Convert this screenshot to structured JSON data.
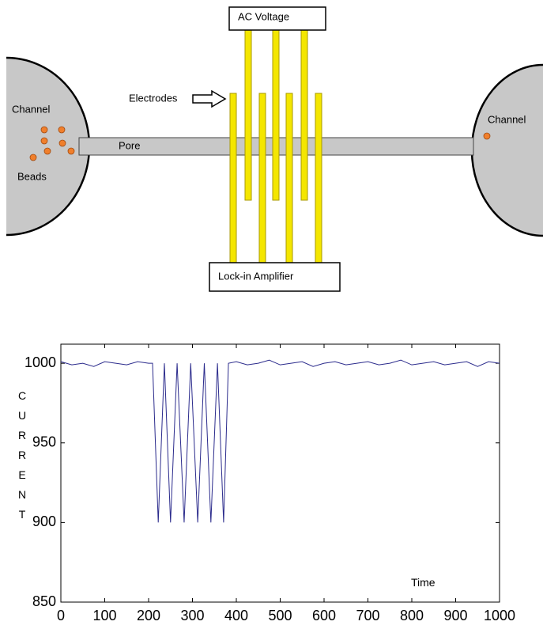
{
  "diagram": {
    "labels": {
      "ac_voltage": "AC Voltage",
      "electrodes": "Electrodes",
      "channel_left": "Channel",
      "beads": "Beads",
      "pore": "Pore",
      "lock_in": "Lock-in Amplifier",
      "channel_right": "Channel"
    }
  },
  "chart_data": {
    "type": "line",
    "ylabel": "CURRENT",
    "xlabel": "Time",
    "x": [
      0,
      25,
      50,
      75,
      100,
      125,
      150,
      175,
      200,
      209,
      222,
      236,
      250,
      265,
      281,
      296,
      312,
      327,
      342,
      357,
      371,
      382,
      400,
      425,
      450,
      475,
      500,
      525,
      550,
      575,
      600,
      625,
      650,
      675,
      700,
      725,
      750,
      775,
      800,
      825,
      850,
      875,
      900,
      925,
      950,
      975,
      1000
    ],
    "values": [
      1001,
      999,
      1000,
      998,
      1001,
      1000,
      999,
      1001,
      1000,
      1000,
      900,
      1000,
      900,
      1000,
      900,
      1000,
      900,
      1000,
      900,
      1000,
      900,
      1000,
      1001,
      999,
      1000,
      1002,
      999,
      1000,
      1001,
      998,
      1000,
      1001,
      999,
      1000,
      1001,
      999,
      1000,
      1002,
      999,
      1000,
      1001,
      999,
      1000,
      1001,
      998,
      1001,
      1000
    ],
    "color": "#2b2b8c",
    "xlim": [
      0,
      1000
    ],
    "ylim": [
      850,
      1012
    ],
    "xticks": [
      0,
      100,
      200,
      300,
      400,
      500,
      600,
      700,
      800,
      900,
      1000
    ],
    "yticks": [
      850,
      900,
      950,
      1000
    ],
    "grid": false
  }
}
